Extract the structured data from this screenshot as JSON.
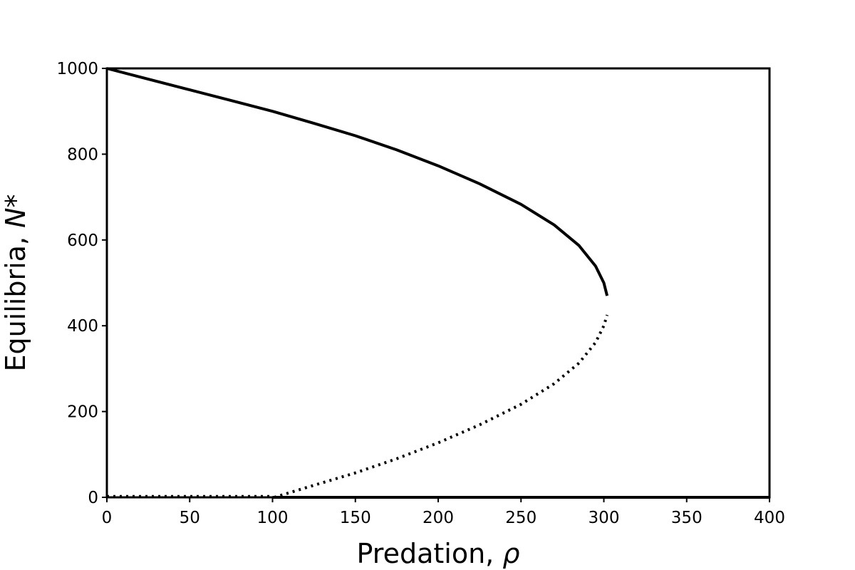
{
  "chart_data": {
    "type": "line",
    "title": "",
    "xlabel": "Predation, ",
    "xlabel_symbol": "ρ",
    "ylabel": "Equilibria, ",
    "ylabel_symbol": "N",
    "ylabel_suffix": "*",
    "xlim": [
      0,
      400
    ],
    "ylim": [
      0,
      1000
    ],
    "xticks": [
      "0",
      "50",
      "100",
      "150",
      "200",
      "250",
      "300",
      "350",
      "400"
    ],
    "yticks": [
      "0",
      "200",
      "400",
      "600",
      "800",
      "1000"
    ],
    "grid": false,
    "legend": "none",
    "series": [
      {
        "style": "solid",
        "x": [
          0,
          25,
          50,
          75,
          100,
          125,
          150,
          175,
          200,
          225,
          250,
          270,
          285,
          295,
          300,
          302
        ],
        "y": [
          1000,
          975,
          950,
          925,
          900,
          872,
          843,
          810,
          773,
          731,
          683,
          635,
          587,
          539,
          500,
          470
        ]
      },
      {
        "style": "dotted",
        "x": [
          0,
          50,
          99
        ],
        "y": [
          2,
          2,
          2
        ]
      },
      {
        "style": "dotted",
        "x": [
          101,
          125,
          150,
          175,
          200,
          225,
          250,
          270,
          285,
          295,
          300,
          302
        ],
        "y": [
          0,
          28,
          57,
          90,
          127,
          169,
          217,
          265,
          313,
          361,
          400,
          425
        ]
      },
      {
        "style": "solid",
        "x": [
          100,
          400
        ],
        "y": [
          0,
          0
        ]
      }
    ]
  }
}
